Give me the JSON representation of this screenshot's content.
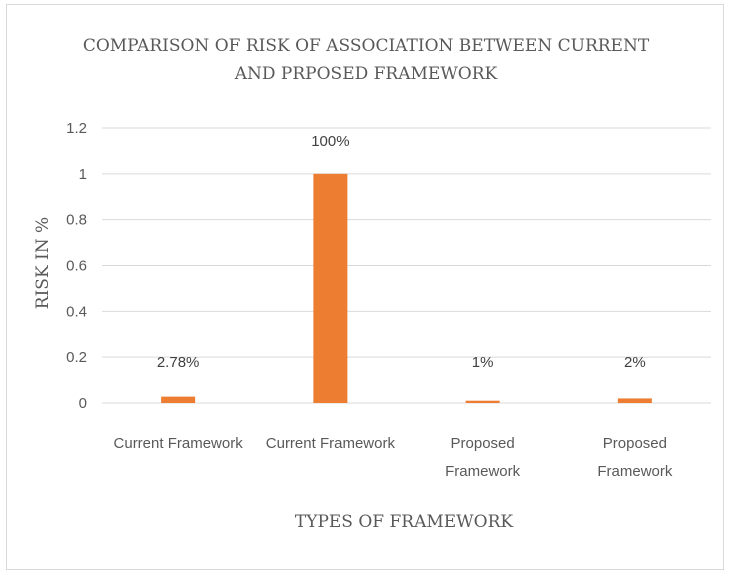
{
  "chart_data": {
    "type": "bar",
    "title_lines": [
      "COMPARISON OF RISK OF ASSOCIATION BETWEEN CURRENT",
      "AND PRPOSED FRAMEWORK"
    ],
    "xlabel": "TYPES OF FRAMEWORK",
    "ylabel": "RISK IN %",
    "categories": [
      [
        "Current Framework"
      ],
      [
        "Current Framework"
      ],
      [
        "Proposed",
        "Framework"
      ],
      [
        "Proposed",
        "Framework"
      ]
    ],
    "values": [
      0.0278,
      1.0,
      0.01,
      0.02
    ],
    "data_labels": [
      "2.78%",
      "100%",
      "1%",
      "2%"
    ],
    "yticks": [
      "0",
      "0.2",
      "0.4",
      "0.6",
      "0.8",
      "1",
      "1.2"
    ],
    "ylim": [
      0,
      1.2
    ],
    "grid": true,
    "legend": "none",
    "bar_color": "#ED7D31",
    "grid_color": "#d9d9d9"
  }
}
